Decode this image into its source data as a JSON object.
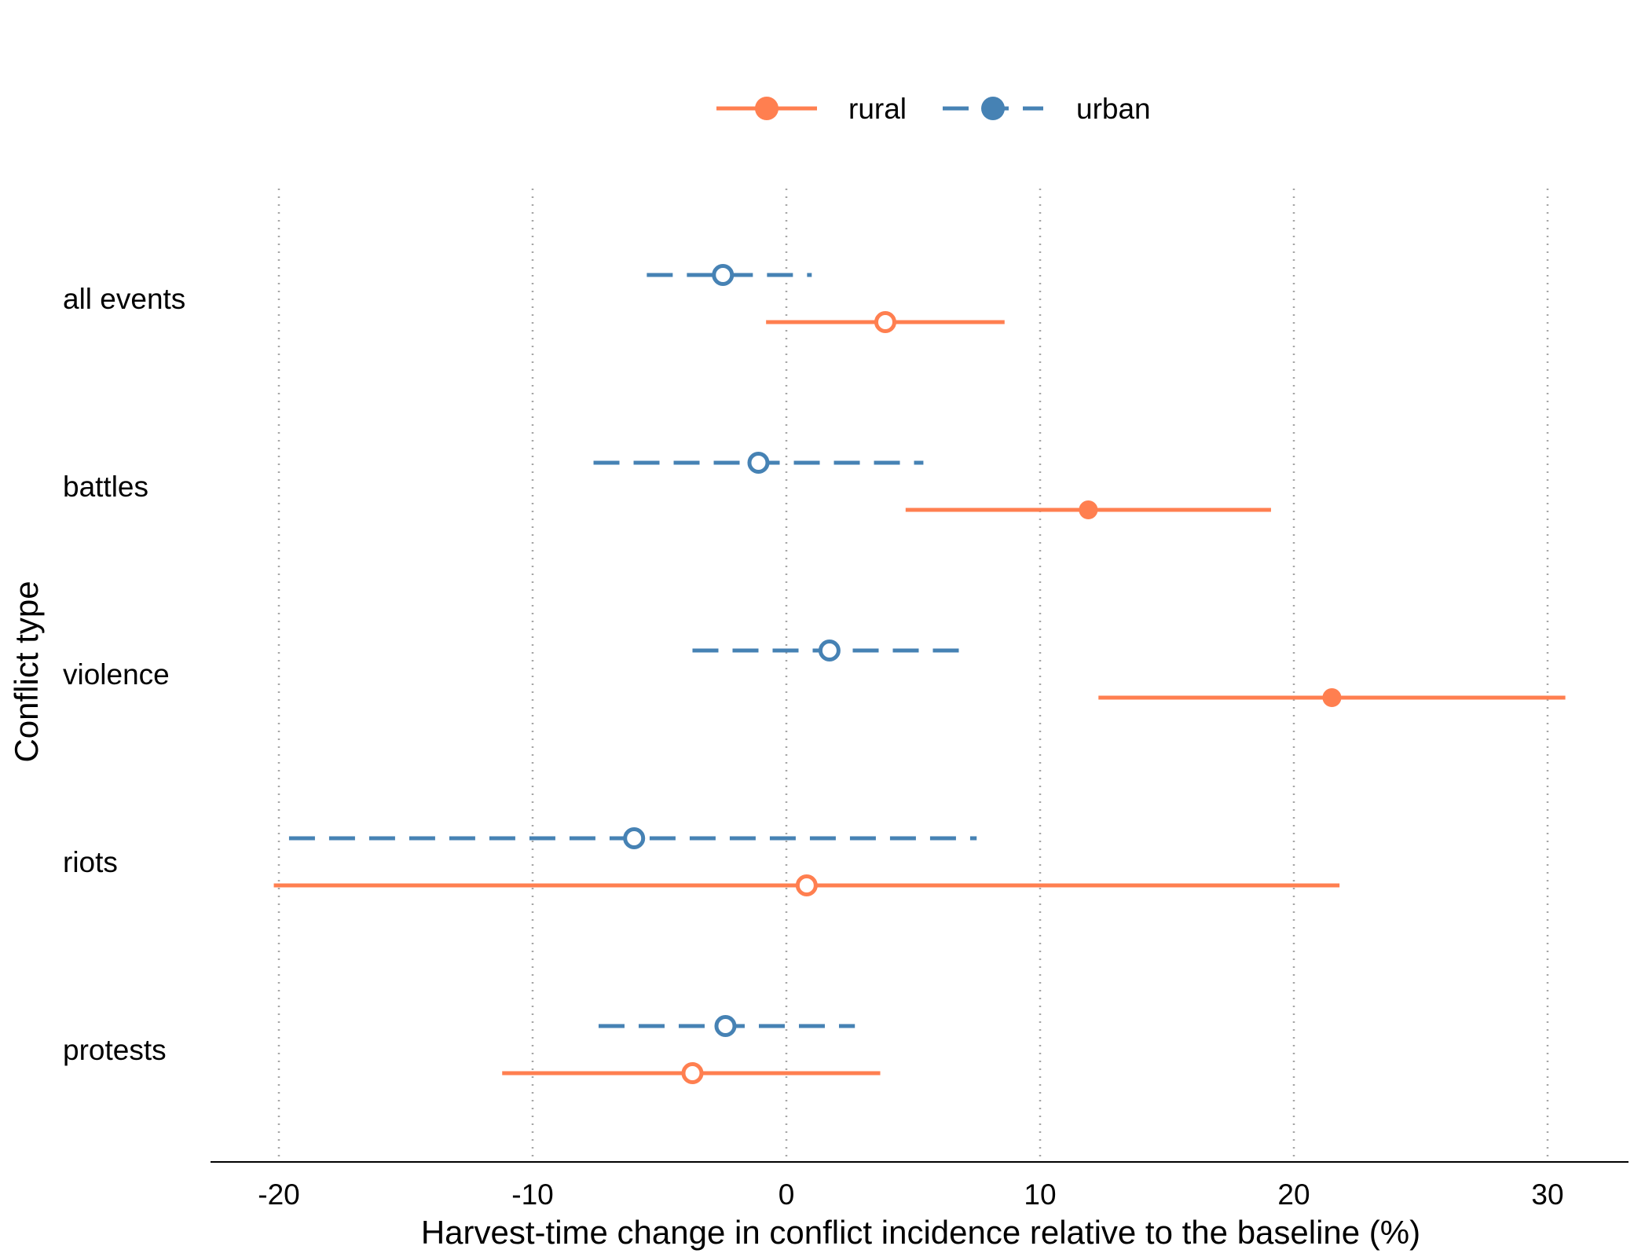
{
  "chart_data": {
    "type": "scatter",
    "subtype": "forest-plot with confidence intervals",
    "title": "",
    "xlabel": "Harvest-time change in conflict incidence relative to the baseline (%)",
    "ylabel": "Conflict type",
    "xlim": [
      -22.5,
      33.5
    ],
    "xticks": [
      -20,
      -10,
      0,
      10,
      20,
      30
    ],
    "grid": "vertical dotted at x ticks",
    "legend_position": "top-center",
    "categories": [
      "all events",
      "battles",
      "violence",
      "riots",
      "protests"
    ],
    "series": [
      {
        "name": "rural",
        "color": "#FF7F50",
        "line_style": "solid",
        "points": [
          {
            "category": "all events",
            "estimate": 3.9,
            "lower": -0.8,
            "upper": 8.6,
            "significant": false
          },
          {
            "category": "battles",
            "estimate": 11.9,
            "lower": 4.7,
            "upper": 19.1,
            "significant": true
          },
          {
            "category": "violence",
            "estimate": 21.5,
            "lower": 12.3,
            "upper": 30.7,
            "significant": true
          },
          {
            "category": "riots",
            "estimate": 0.8,
            "lower": -20.2,
            "upper": 21.8,
            "significant": false
          },
          {
            "category": "protests",
            "estimate": -3.7,
            "lower": -11.2,
            "upper": 3.7,
            "significant": false
          }
        ]
      },
      {
        "name": "urban",
        "color": "#4682B4",
        "line_style": "dashed",
        "points": [
          {
            "category": "all events",
            "estimate": -2.5,
            "lower": -5.5,
            "upper": 1.0,
            "significant": false
          },
          {
            "category": "battles",
            "estimate": -1.1,
            "lower": -7.6,
            "upper": 5.4,
            "significant": false
          },
          {
            "category": "violence",
            "estimate": 1.7,
            "lower": -3.7,
            "upper": 7.2,
            "significant": false
          },
          {
            "category": "riots",
            "estimate": -6.0,
            "lower": -19.6,
            "upper": 7.5,
            "significant": false
          },
          {
            "category": "protests",
            "estimate": -2.4,
            "lower": -7.4,
            "upper": 2.7,
            "significant": false
          }
        ]
      }
    ]
  }
}
